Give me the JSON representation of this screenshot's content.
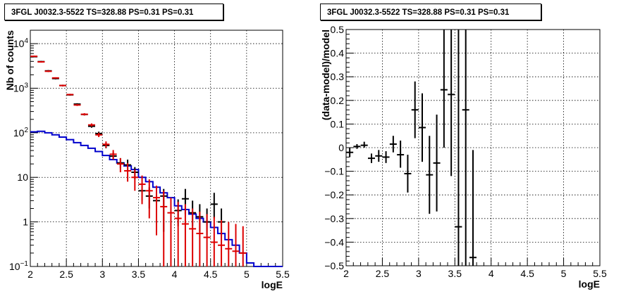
{
  "chart_data": [
    {
      "type": "step-histogram",
      "title": "3FGL J0032.3-5522 TS=328.88 PS=0.31 PS=0.31",
      "xlabel": "logE",
      "ylabel": "Nb of counts",
      "xlim": [
        2,
        5.5
      ],
      "ylim": [
        0.1,
        20000
      ],
      "yscale": "log",
      "grid": true,
      "xticks": [
        "2",
        "2.5",
        "3",
        "3.5",
        "4",
        "4.5",
        "5",
        "5.5"
      ],
      "yticks": [
        "10^-1",
        "1",
        "10",
        "10^2",
        "10^3",
        "10^4"
      ],
      "bin_width": 0.1,
      "series": [
        {
          "color": "#0000cc",
          "style": "step",
          "x": [
            2.0,
            2.1,
            2.2,
            2.3,
            2.4,
            2.5,
            2.6,
            2.7,
            2.8,
            2.9,
            3.0,
            3.1,
            3.2,
            3.3,
            3.4,
            3.5,
            3.6,
            3.7,
            3.8,
            3.9,
            4.0,
            4.1,
            4.2,
            4.3,
            4.4,
            4.5,
            4.6,
            4.7,
            4.8,
            4.9,
            5.0,
            5.1,
            5.2,
            5.3,
            5.4
          ],
          "y": [
            105,
            108,
            100,
            90,
            80,
            70,
            60,
            52,
            45,
            38,
            31,
            25,
            21,
            18,
            15,
            10,
            8,
            6,
            4.5,
            3.5,
            2.3,
            1.9,
            1.5,
            1.2,
            1.0,
            0.75,
            0.55,
            0.4,
            0.3,
            0.2,
            0.12,
            0.1,
            0.1,
            0.1,
            0.1
          ]
        },
        {
          "color": "#dd0000",
          "style": "errorbar",
          "x": [
            2.05,
            2.15,
            2.25,
            2.35,
            2.45,
            2.55,
            2.65,
            2.75,
            2.85,
            2.95,
            3.05,
            3.15,
            3.25,
            3.35,
            3.45,
            3.55,
            3.65,
            3.75,
            3.85,
            3.95,
            4.05,
            4.15,
            4.25,
            4.35,
            4.45,
            4.55,
            4.65,
            4.75,
            4.85,
            4.95
          ],
          "y": [
            5200,
            3900,
            2400,
            1700,
            1150,
            720,
            420,
            260,
            150,
            90,
            55,
            33,
            20,
            14,
            10,
            7,
            5,
            3.5,
            2.2,
            1.6,
            1.2,
            0.9,
            0.7,
            0.55,
            0.45,
            0.35,
            0.3,
            0.25,
            0.22,
            0.2
          ],
          "ylow": [
            5000,
            3750,
            2300,
            1640,
            1100,
            690,
            400,
            245,
            138,
            80,
            46,
            25,
            13,
            8,
            5,
            2.5,
            1.2,
            0.5,
            0.1,
            0.1,
            0.1,
            0.1,
            0.1,
            0.1,
            0.1,
            0.1,
            0.1,
            0.1,
            0.1,
            0.1
          ],
          "yhigh": [
            5400,
            4050,
            2500,
            1760,
            1200,
            750,
            440,
            275,
            162,
            100,
            64,
            41,
            27,
            21,
            15,
            11,
            9,
            6.5,
            5,
            3.5,
            2.8,
            2.5,
            2.0,
            1.7,
            1.5,
            1.3,
            1.1,
            1.0,
            0.9,
            0.8
          ]
        },
        {
          "color": "#000000",
          "style": "errorbar",
          "x": [
            2.05,
            2.15,
            2.25,
            2.35,
            2.45,
            2.55,
            2.65,
            2.75,
            2.85,
            2.95,
            3.05,
            3.15,
            3.25,
            3.35,
            3.45,
            3.55,
            3.65,
            3.75,
            3.85,
            4.05,
            4.15,
            4.25,
            4.35,
            4.45,
            4.55,
            4.65
          ],
          "y": [
            5100,
            3950,
            2450,
            1650,
            1150,
            710,
            440,
            258,
            140,
            96,
            52,
            30,
            21,
            19,
            13,
            5,
            3.8,
            3,
            3.8,
            1.8,
            3.3,
            1.6,
            1.3,
            1,
            2.5,
            1
          ],
          "ylow": [
            4950,
            3800,
            2350,
            1580,
            1100,
            680,
            420,
            245,
            130,
            86,
            45,
            25,
            16,
            14,
            9,
            3,
            2,
            1.5,
            0.6,
            0.8,
            1.5,
            0.8,
            0.6,
            0.5,
            1.2,
            0.5
          ],
          "yhigh": [
            5250,
            4100,
            2550,
            1720,
            1200,
            740,
            460,
            271,
            150,
            106,
            59,
            36,
            27,
            25,
            17,
            7.5,
            6,
            5,
            5.5,
            3.2,
            5.5,
            3,
            2.5,
            2,
            4.5,
            2
          ]
        }
      ]
    },
    {
      "type": "errorbar",
      "title": "3FGL J0032.3-5522 TS=328.88 PS=0.31 PS=0.31",
      "xlabel": "logE",
      "ylabel": "(data-model)/model",
      "xlim": [
        2,
        5.5
      ],
      "ylim": [
        -0.5,
        0.5
      ],
      "grid": true,
      "xticks": [
        "2",
        "2.5",
        "3",
        "3.5",
        "4",
        "4.5",
        "5",
        "5.5"
      ],
      "yticks": [
        "−0.5",
        "−0.4",
        "−0.3",
        "−0.2",
        "−0.1",
        "0",
        "0.1",
        "0.2",
        "0.3",
        "0.4",
        "0.5"
      ],
      "series": [
        {
          "color": "#000000",
          "x": [
            2.05,
            2.15,
            2.25,
            2.35,
            2.45,
            2.55,
            2.65,
            2.75,
            2.85,
            2.95,
            3.05,
            3.15,
            3.25,
            3.35,
            3.45,
            3.55,
            3.65,
            3.75
          ],
          "y": [
            -0.02,
            0.005,
            0.01,
            -0.045,
            -0.035,
            -0.04,
            0.015,
            -0.03,
            -0.11,
            0.16,
            0.085,
            -0.115,
            -0.065,
            0.245,
            0.225,
            -0.335,
            0.16,
            -0.465
          ],
          "ylow": [
            -0.04,
            -0.005,
            0.0,
            -0.065,
            -0.06,
            -0.065,
            -0.02,
            -0.085,
            -0.19,
            0.04,
            -0.06,
            -0.28,
            -0.27,
            0.0,
            -0.12,
            -0.5,
            -0.5,
            -0.5
          ],
          "yhigh": [
            0.0,
            0.015,
            0.025,
            -0.025,
            -0.01,
            -0.015,
            0.05,
            0.03,
            -0.03,
            0.28,
            0.23,
            0.05,
            0.14,
            0.5,
            0.5,
            0.5,
            0.5,
            -0.01
          ]
        }
      ]
    }
  ]
}
